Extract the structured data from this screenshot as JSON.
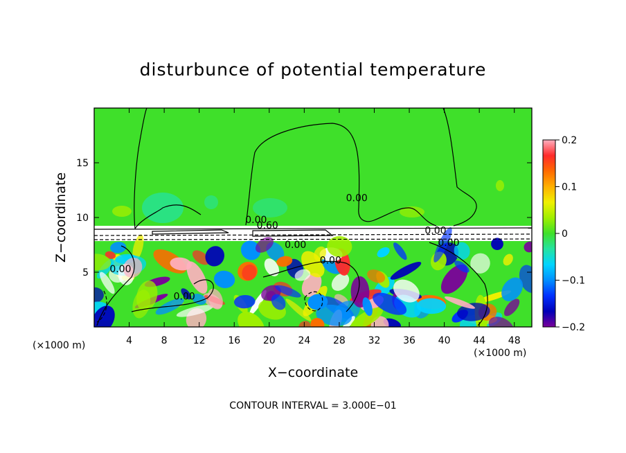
{
  "chart_data": {
    "type": "heatmap",
    "title": "disturbunce of potential temperature",
    "xlabel": "X−coordinate",
    "ylabel": "Z−coordinate",
    "x_unit_label": "(×1000 m)",
    "footer": "CONTOUR INTERVAL = 3.000E−01",
    "xlim": [
      0,
      50
    ],
    "ylim": [
      0,
      20
    ],
    "x_ticks": [
      4,
      8,
      12,
      16,
      20,
      24,
      28,
      32,
      36,
      40,
      44,
      48
    ],
    "x_tick_labels": [
      "4",
      "8",
      "12",
      "16",
      "20",
      "24",
      "28",
      "32",
      "36",
      "40",
      "44",
      "48"
    ],
    "y_ticks": [
      5,
      10,
      15
    ],
    "y_tick_labels": [
      "5",
      "10",
      "15"
    ],
    "colorbar": {
      "range": [
        -0.2,
        0.2
      ],
      "ticks": [
        0.2,
        0.1,
        0,
        -0.1,
        -0.2
      ],
      "tick_labels": [
        "0.2",
        "0.1",
        "0",
        "−0.1",
        "−0.2"
      ],
      "colors": [
        "#ffb0c0",
        "#ff2a2a",
        "#ff6a00",
        "#ffb000",
        "#f0f000",
        "#a0ef00",
        "#3fe02a",
        "#24e3a0",
        "#00d4ff",
        "#008fff",
        "#0030ff",
        "#0000b8",
        "#7a009a"
      ]
    },
    "contour_labels": [
      {
        "text": "0.00",
        "x": 18.5,
        "y": 9.5
      },
      {
        "text": "0.60",
        "x": 19.8,
        "y": 9.0
      },
      {
        "text": "0.00",
        "x": 30.0,
        "y": 11.5
      },
      {
        "text": "0.00",
        "x": 3.0,
        "y": 5.0
      },
      {
        "text": "0.00",
        "x": 10.3,
        "y": 2.5
      },
      {
        "text": "0.00",
        "x": 27.0,
        "y": 5.8
      },
      {
        "text": "0.00",
        "x": 40.5,
        "y": 7.4
      },
      {
        "text": "0.00",
        "x": 39.0,
        "y": 8.5
      },
      {
        "text": "0.00",
        "x": 23.0,
        "y": 7.2
      }
    ],
    "field_description_levels": {
      "upper_layer_value": 0.0,
      "inversion_height": 9.0
    }
  }
}
